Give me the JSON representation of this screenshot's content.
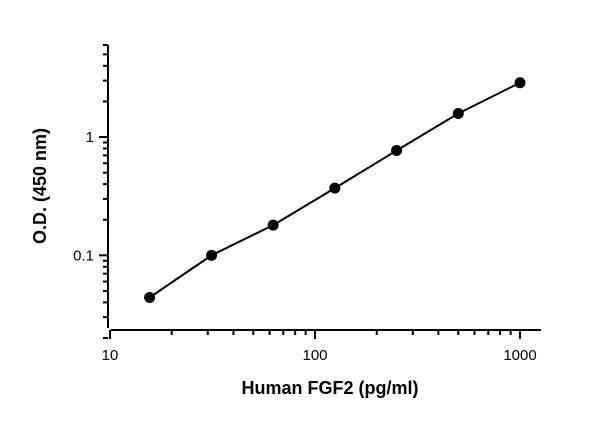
{
  "chart_data": {
    "type": "scatter",
    "title": "",
    "xlabel": "Human FGF2 (pg/ml)",
    "ylabel": "O.D. (450 nm)",
    "xscale": "log",
    "yscale": "log",
    "xlim": [
      10,
      1000
    ],
    "ylim": [
      0.02,
      6
    ],
    "xticks": [
      {
        "value": 10,
        "label": "10"
      },
      {
        "value": 100,
        "label": "100"
      },
      {
        "value": 1000,
        "label": "1000"
      }
    ],
    "yticks": [
      {
        "value": 0.1,
        "label": "0.1"
      },
      {
        "value": 1,
        "label": "1"
      }
    ],
    "grid": false,
    "legend": "none",
    "series": [
      {
        "x": [
          15.6,
          31.3,
          62.5,
          125,
          250,
          500,
          1000
        ],
        "y": [
          0.044,
          0.1,
          0.18,
          0.37,
          0.77,
          1.58,
          2.88
        ],
        "fit_line": true
      }
    ],
    "colors": {
      "marker": "#000000",
      "line": "#000000",
      "axis": "#000000"
    }
  }
}
